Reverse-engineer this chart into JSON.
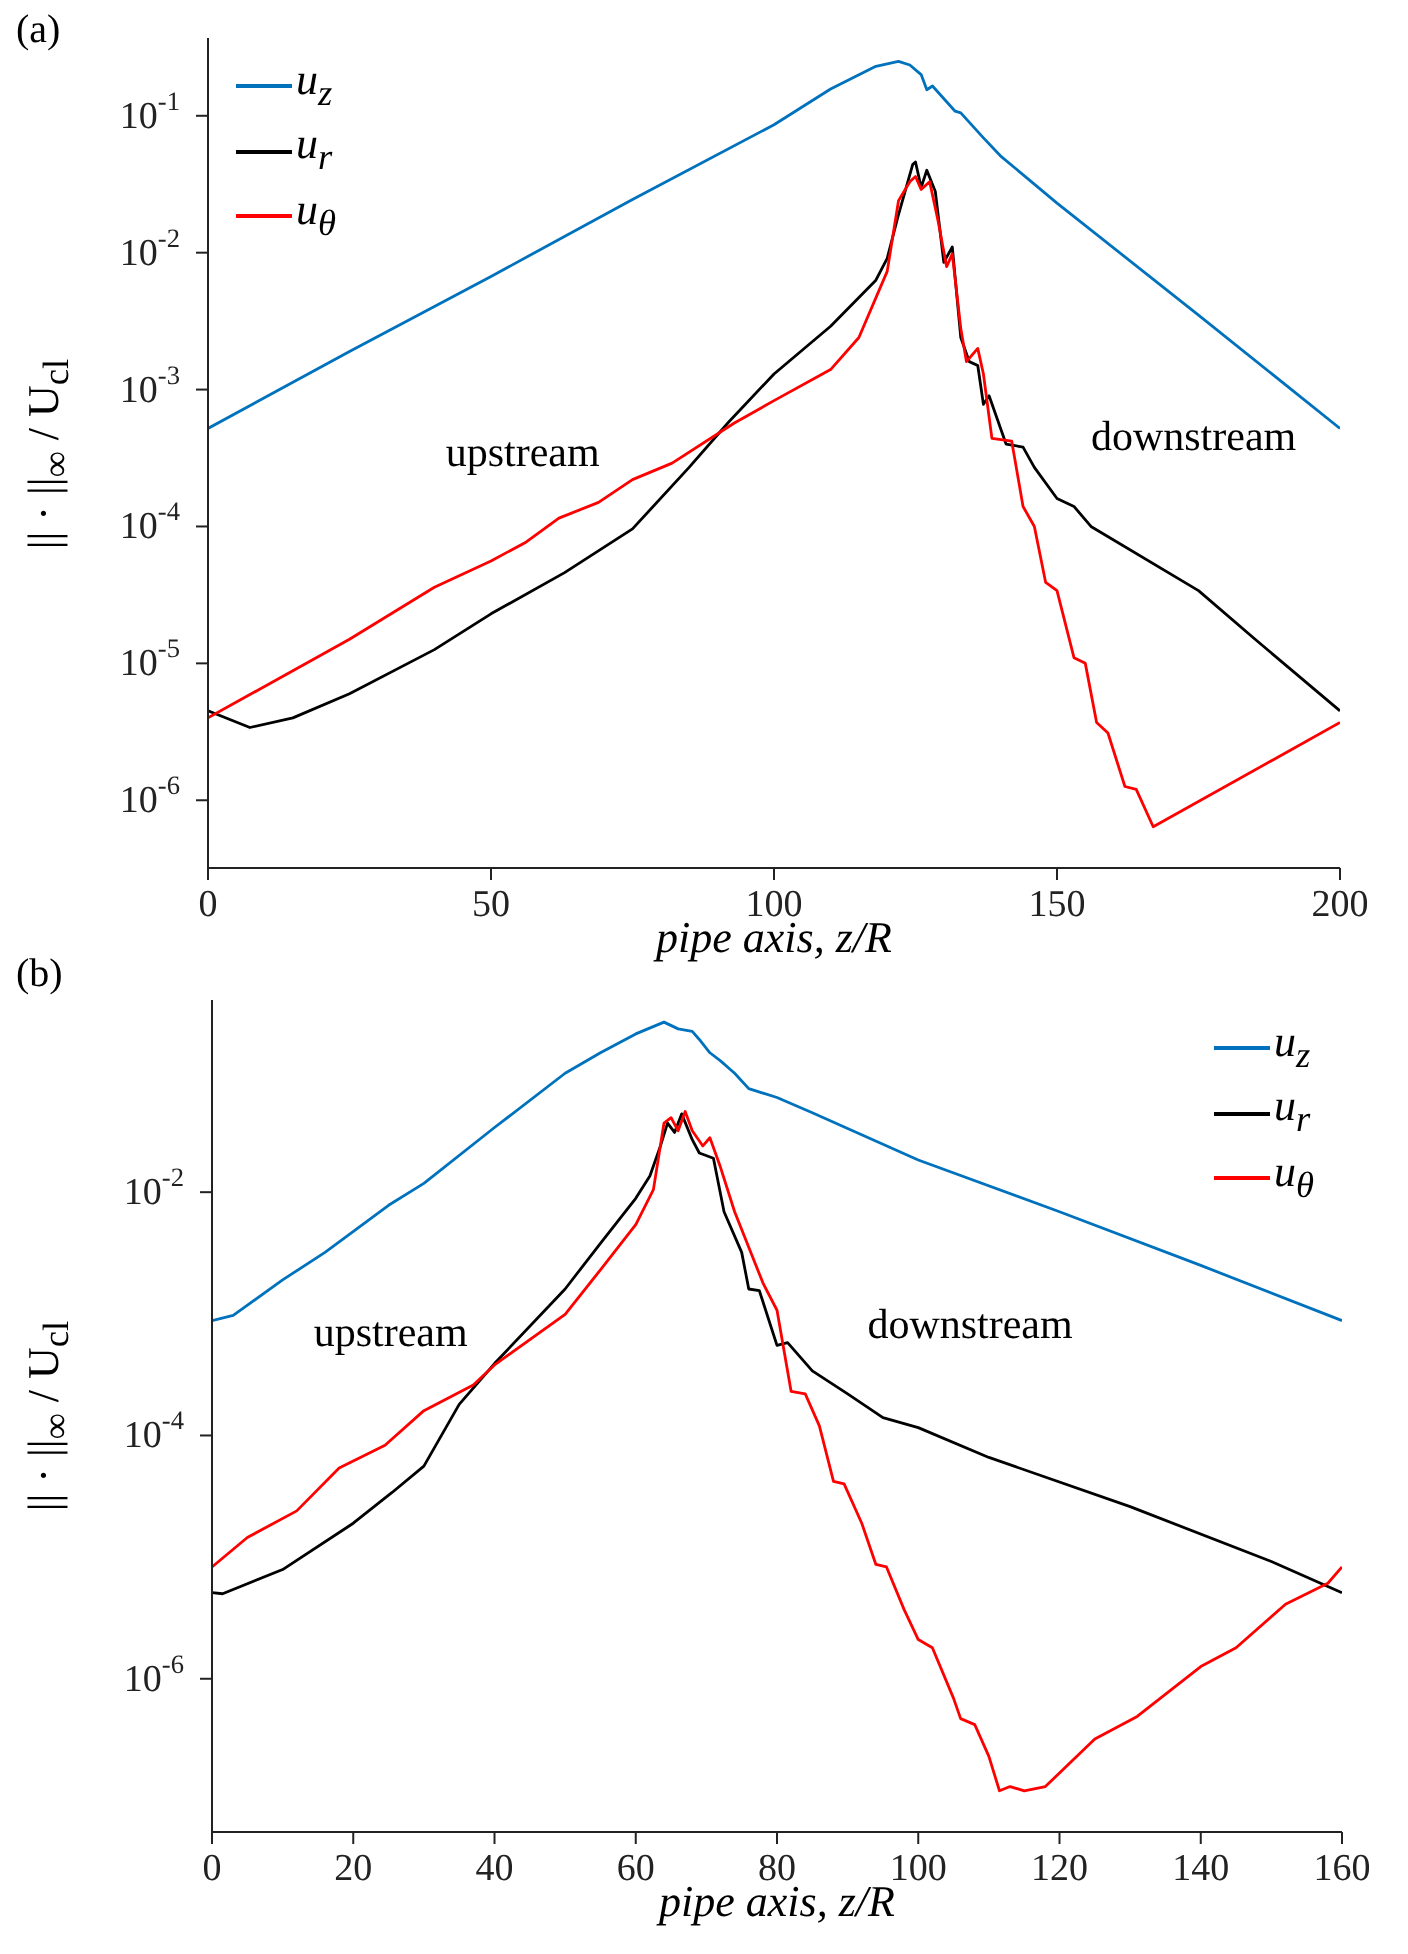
{
  "chart_data": [
    {
      "type": "line",
      "title": "(a)",
      "xlabel": "pipe axis, z/R",
      "ylabel": "|| · ||$_{∞}$ / U$_{cl}$",
      "log": "y",
      "grid": false,
      "legend": "top left",
      "marker": "none",
      "line_style": "solid",
      "annotations": [
        "upstream",
        "downstream"
      ],
      "xlim": [
        0,
        200
      ],
      "xticks": [
        0,
        50,
        100,
        150,
        200
      ],
      "ylim": [
        3.2e-07,
        0.37
      ],
      "yticks": [
        {
          "value": 1e-06,
          "label": "10$^{-6}$"
        },
        {
          "value": 1e-05,
          "label": "10$^{-5}$"
        },
        {
          "value": 0.0001,
          "label": "10$^{-4}$"
        },
        {
          "value": 0.001,
          "label": "10$^{-3}$"
        },
        {
          "value": 0.01,
          "label": "10$^{-2}$"
        },
        {
          "value": 0.1,
          "label": "10$^{-1}$"
        }
      ],
      "series": [
        {
          "name": "u$_{z}$",
          "color": "#0072bd",
          "x": [
            0,
            25,
            50,
            75,
            100,
            110,
            118,
            122,
            124,
            126,
            127,
            128,
            132,
            133,
            137,
            140,
            150,
            175,
            200
          ],
          "values": [
            0.00052,
            0.0019,
            0.0067,
            0.0245,
            0.086,
            0.157,
            0.23,
            0.25,
            0.235,
            0.2,
            0.155,
            0.165,
            0.108,
            0.105,
            0.069,
            0.051,
            0.023,
            0.0035,
            0.00052
          ]
        },
        {
          "name": "u$_{r}$",
          "color": "#000000",
          "x": [
            0,
            7.4,
            15,
            25,
            40,
            50,
            63,
            75,
            85,
            92,
            100,
            110,
            118,
            120,
            122,
            124.5,
            125,
            126,
            127,
            128.5,
            130,
            131.5,
            133,
            134.5,
            136,
            137,
            138,
            141,
            144,
            146,
            150,
            153,
            156,
            175,
            185,
            200
          ],
          "values": [
            4.5e-06,
            3.4e-06,
            4e-06,
            6e-06,
            1.26e-05,
            2.3e-05,
            4.6e-05,
            9.6e-05,
            0.00027,
            0.00058,
            0.0013,
            0.0029,
            0.0063,
            0.0091,
            0.019,
            0.044,
            0.046,
            0.03,
            0.04,
            0.028,
            0.0085,
            0.011,
            0.0024,
            0.0016,
            0.0015,
            0.00078,
            0.0009,
            0.0004,
            0.00038,
            0.00027,
            0.00016,
            0.00014,
            0.0001,
            3.4e-05,
            1.5e-05,
            4.5e-06
          ]
        },
        {
          "name": "u$_{θ}$",
          "color": "#ff0000",
          "x": [
            0,
            25,
            40,
            50,
            56,
            62,
            69,
            75,
            82,
            93,
            100,
            110,
            115,
            120,
            122,
            124,
            125,
            126,
            127.5,
            129,
            130.5,
            131.5,
            133,
            134,
            136,
            137,
            138.5,
            142,
            144,
            146,
            148,
            150,
            153,
            155,
            157,
            159,
            162,
            164,
            167,
            200
          ],
          "values": [
            4e-06,
            1.5e-05,
            3.6e-05,
            5.6e-05,
            7.6e-05,
            0.000115,
            0.00015,
            0.00022,
            0.00029,
            0.00057,
            0.00083,
            0.0014,
            0.0024,
            0.0073,
            0.024,
            0.033,
            0.036,
            0.029,
            0.033,
            0.017,
            0.0079,
            0.0098,
            0.0028,
            0.0016,
            0.002,
            0.0013,
            0.00044,
            0.00042,
            0.00014,
            0.0001,
            3.9e-05,
            3.4e-05,
            1.1e-05,
            1e-05,
            3.7e-06,
            3.1e-06,
            1.26e-06,
            1.2e-06,
            6.4e-07,
            3.7e-06
          ]
        }
      ]
    },
    {
      "type": "line",
      "title": "(b)",
      "xlabel": "pipe axis, z/R",
      "ylabel": "|| · ||$_{∞}$ / U$_{cl}$",
      "log": "y",
      "grid": false,
      "legend": "top right",
      "marker": "none",
      "line_style": "solid",
      "annotations": [
        "upstream",
        "downstream"
      ],
      "xlim": [
        0,
        160
      ],
      "xticks": [
        0,
        20,
        40,
        60,
        80,
        100,
        120,
        140,
        160
      ],
      "ylim": [
        5.5e-08,
        0.38
      ],
      "yticks": [
        {
          "value": 1e-06,
          "label": "10$^{-6}$"
        },
        {
          "value": 0.0001,
          "label": "10$^{-4}$"
        },
        {
          "value": 0.01,
          "label": "10$^{-2}$"
        }
      ],
      "series": [
        {
          "name": "u$_{z}$",
          "color": "#0072bd",
          "x": [
            0,
            3,
            10,
            16,
            25,
            30,
            40,
            50,
            55,
            60,
            64,
            66,
            68,
            69,
            70.5,
            72,
            74,
            76,
            80,
            85,
            100,
            120,
            140,
            160
          ],
          "values": [
            0.00088,
            0.00097,
            0.0019,
            0.0032,
            0.0078,
            0.0118,
            0.034,
            0.095,
            0.14,
            0.2,
            0.25,
            0.22,
            0.21,
            0.18,
            0.14,
            0.12,
            0.095,
            0.071,
            0.06,
            0.045,
            0.0184,
            0.0069,
            0.0025,
            0.00088
          ]
        },
        {
          "name": "u$_{r}$",
          "color": "#000000",
          "x": [
            0,
            1.5,
            10,
            20,
            25.5,
            30,
            35,
            40,
            50,
            55,
            60,
            62,
            63.5,
            64.5,
            65.5,
            66.5,
            68,
            69,
            71,
            72.5,
            75,
            76,
            77.5,
            80,
            81.5,
            85,
            90,
            95,
            100,
            110,
            130,
            150,
            160
          ],
          "values": [
            5.1e-06,
            5e-06,
            7.9e-06,
            1.9e-05,
            3.4e-05,
            5.6e-05,
            0.00018,
            0.00039,
            0.0016,
            0.0038,
            0.0089,
            0.0136,
            0.024,
            0.037,
            0.031,
            0.044,
            0.027,
            0.021,
            0.019,
            0.0069,
            0.0032,
            0.0016,
            0.00155,
            0.00055,
            0.00058,
            0.00034,
            0.00022,
            0.00014,
            0.000116,
            6.6e-05,
            2.6e-05,
            9.2e-06,
            5.1e-06
          ]
        },
        {
          "name": "u$_{θ}$",
          "color": "#ff0000",
          "x": [
            0,
            5,
            12,
            18,
            24.5,
            30,
            37,
            40,
            50,
            55,
            60,
            62.5,
            64,
            65,
            66,
            67,
            68,
            69.5,
            70.5,
            72,
            74,
            78,
            80,
            82,
            84,
            86,
            88,
            89.5,
            92,
            94,
            95.5,
            98,
            100,
            102,
            105,
            106,
            108,
            110,
            111.5,
            113,
            115,
            118,
            125,
            131,
            140,
            145,
            152,
            158,
            160
          ],
          "values": [
            8.3e-06,
            1.45e-05,
            2.4e-05,
            5.4e-05,
            8.3e-05,
            0.00016,
            0.00026,
            0.00038,
            0.00099,
            0.0023,
            0.0054,
            0.0105,
            0.037,
            0.041,
            0.032,
            0.046,
            0.032,
            0.024,
            0.028,
            0.016,
            0.0069,
            0.0018,
            0.00107,
            0.00023,
            0.00022,
            0.00012,
            4.2e-05,
            4e-05,
            1.9e-05,
            8.7e-06,
            8.3e-06,
            3.7e-06,
            2.1e-06,
            1.8e-06,
            6.9e-07,
            4.7e-07,
            4.2e-07,
            2.3e-07,
            1.2e-07,
            1.3e-07,
            1.2e-07,
            1.3e-07,
            3.2e-07,
            4.9e-07,
            1.26e-06,
            1.8e-06,
            4.1e-06,
            6.1e-06,
            8.3e-06
          ]
        }
      ]
    }
  ]
}
